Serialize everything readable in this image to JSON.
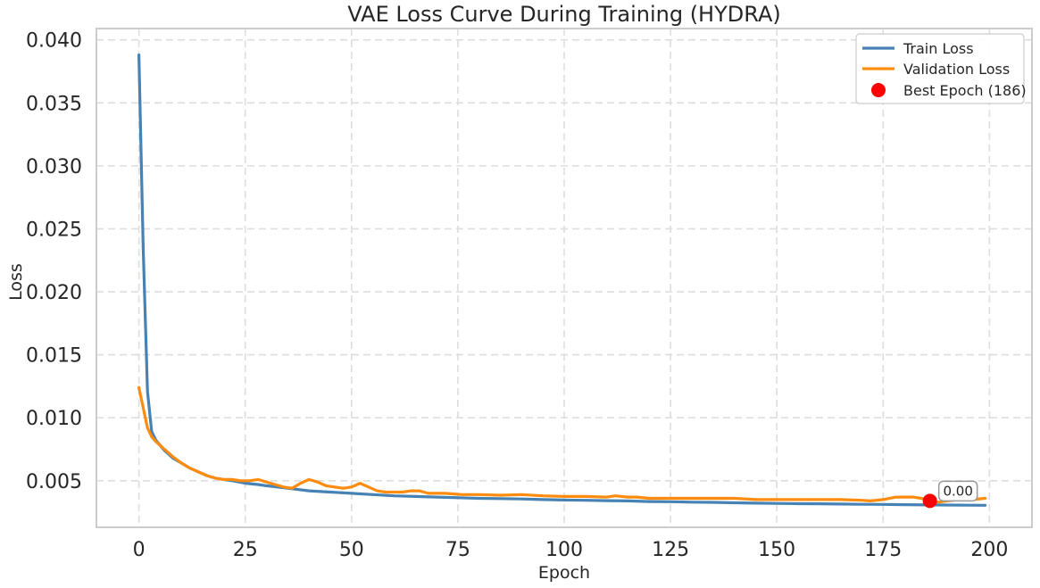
{
  "chart_data": {
    "type": "line",
    "title": "VAE Loss Curve During Training (HYDRA)",
    "xlabel": "Epoch",
    "ylabel": "Loss",
    "xlim": [
      -10,
      210
    ],
    "ylim": [
      0.0013,
      0.0409
    ],
    "xticks": [
      0,
      25,
      50,
      75,
      100,
      125,
      150,
      175,
      200
    ],
    "yticks": [
      0.005,
      0.01,
      0.015,
      0.02,
      0.025,
      0.03,
      0.035,
      0.04
    ],
    "x_tick_labels": [
      "0",
      "25",
      "50",
      "75",
      "100",
      "125",
      "150",
      "175",
      "200"
    ],
    "y_tick_labels": [
      "0.005",
      "0.010",
      "0.015",
      "0.020",
      "0.025",
      "0.030",
      "0.035",
      "0.040"
    ],
    "grid": true,
    "legend_position": "top-right",
    "series": [
      {
        "name": "Train Loss",
        "color": "#4682b4",
        "x": [
          0,
          1,
          2,
          3,
          4,
          5,
          6,
          7,
          8,
          9,
          10,
          12,
          14,
          16,
          18,
          20,
          22,
          25,
          28,
          30,
          35,
          40,
          45,
          50,
          55,
          60,
          65,
          70,
          75,
          80,
          85,
          90,
          95,
          100,
          105,
          110,
          115,
          120,
          125,
          130,
          135,
          140,
          145,
          150,
          155,
          160,
          165,
          170,
          175,
          180,
          185,
          186,
          190,
          195,
          199
        ],
        "y": [
          0.0388,
          0.0235,
          0.0121,
          0.0089,
          0.0082,
          0.0078,
          0.0074,
          0.0071,
          0.0068,
          0.0066,
          0.0064,
          0.006,
          0.0057,
          0.0054,
          0.0052,
          0.0051,
          0.005,
          0.0048,
          0.0047,
          0.0046,
          0.0044,
          0.0042,
          0.0041,
          0.004,
          0.0039,
          0.0038,
          0.00375,
          0.0037,
          0.00365,
          0.0036,
          0.00358,
          0.00355,
          0.0035,
          0.00347,
          0.00345,
          0.00342,
          0.0034,
          0.00335,
          0.00333,
          0.0033,
          0.00328,
          0.00325,
          0.00322,
          0.0032,
          0.00318,
          0.00317,
          0.00315,
          0.00313,
          0.00312,
          0.0031,
          0.00308,
          0.00308,
          0.00307,
          0.00306,
          0.00305
        ]
      },
      {
        "name": "Validation Loss",
        "color": "#ff8c0f",
        "x": [
          0,
          1,
          2,
          3,
          4,
          5,
          6,
          7,
          8,
          10,
          12,
          14,
          16,
          18,
          20,
          22,
          24,
          26,
          28,
          30,
          32,
          34,
          36,
          38,
          40,
          42,
          44,
          46,
          48,
          50,
          52,
          54,
          56,
          58,
          60,
          62,
          64,
          66,
          68,
          70,
          72,
          74,
          76,
          78,
          80,
          85,
          90,
          95,
          100,
          105,
          110,
          112,
          115,
          117,
          120,
          125,
          130,
          135,
          140,
          145,
          150,
          155,
          160,
          165,
          170,
          172,
          175,
          178,
          182,
          184,
          186,
          188,
          190,
          193,
          196,
          199
        ],
        "y": [
          0.0124,
          0.0108,
          0.0092,
          0.0085,
          0.0081,
          0.0078,
          0.0075,
          0.0072,
          0.0069,
          0.0064,
          0.006,
          0.0057,
          0.0054,
          0.0052,
          0.0051,
          0.0051,
          0.005,
          0.005,
          0.0051,
          0.0049,
          0.0047,
          0.0045,
          0.0044,
          0.0048,
          0.0051,
          0.0049,
          0.0046,
          0.0045,
          0.0044,
          0.0045,
          0.0048,
          0.0045,
          0.0042,
          0.0041,
          0.0041,
          0.0041,
          0.0042,
          0.0042,
          0.004,
          0.004,
          0.004,
          0.00395,
          0.0039,
          0.0039,
          0.0039,
          0.00385,
          0.0039,
          0.0038,
          0.00375,
          0.00375,
          0.0037,
          0.0038,
          0.0037,
          0.0037,
          0.0036,
          0.0036,
          0.0036,
          0.0036,
          0.0036,
          0.0035,
          0.0035,
          0.0035,
          0.0035,
          0.0035,
          0.00345,
          0.0034,
          0.0035,
          0.0037,
          0.0037,
          0.0036,
          0.0034,
          0.0033,
          0.0034,
          0.0035,
          0.0035,
          0.0036
        ]
      }
    ],
    "best_epoch": {
      "label": "Best Epoch (186)",
      "x": 186,
      "y": 0.0034,
      "color": "#ff0000",
      "annotation": "0.00"
    }
  }
}
